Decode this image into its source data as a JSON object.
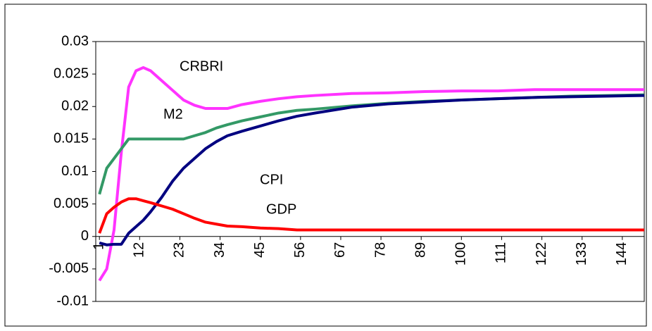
{
  "chart_data": {
    "type": "line",
    "x": [
      1,
      3,
      5,
      7,
      9,
      11,
      13,
      15,
      18,
      21,
      24,
      27,
      30,
      33,
      36,
      40,
      45,
      50,
      55,
      60,
      70,
      80,
      90,
      100,
      110,
      120,
      130,
      140,
      150
    ],
    "series": [
      {
        "name": "CRBRI",
        "color": "#ff33ff",
        "values": [
          -0.0068,
          -0.005,
          0.001,
          0.013,
          0.023,
          0.0255,
          0.026,
          0.0255,
          0.024,
          0.0225,
          0.021,
          0.0202,
          0.0197,
          0.0197,
          0.0197,
          0.0203,
          0.0208,
          0.0212,
          0.0215,
          0.0217,
          0.022,
          0.0221,
          0.0223,
          0.0224,
          0.0224,
          0.0226,
          0.0226,
          0.0226,
          0.0226
        ]
      },
      {
        "name": "M2",
        "color": "#339966",
        "values": [
          0.0065,
          0.0105,
          0.012,
          0.0135,
          0.015,
          0.015,
          0.015,
          0.015,
          0.015,
          0.015,
          0.015,
          0.0155,
          0.016,
          0.0167,
          0.0172,
          0.0178,
          0.0184,
          0.019,
          0.0194,
          0.0196,
          0.0201,
          0.0205,
          0.0208,
          0.021,
          0.0212,
          0.0214,
          0.0216,
          0.0217,
          0.0218
        ]
      },
      {
        "name": "CPI",
        "color": "#000080",
        "values": [
          -0.001,
          -0.0013,
          -0.0012,
          -0.0012,
          0.0005,
          0.0015,
          0.0025,
          0.0038,
          0.006,
          0.0085,
          0.0105,
          0.012,
          0.0135,
          0.0146,
          0.0155,
          0.0162,
          0.017,
          0.0178,
          0.0185,
          0.019,
          0.0199,
          0.0204,
          0.0207,
          0.021,
          0.0212,
          0.0214,
          0.0215,
          0.0216,
          0.0217
        ]
      },
      {
        "name": "GDP",
        "color": "#ff0000",
        "values": [
          0.0005,
          0.0035,
          0.0045,
          0.0053,
          0.0058,
          0.0058,
          0.0055,
          0.0052,
          0.0047,
          0.0042,
          0.0035,
          0.0028,
          0.0022,
          0.0019,
          0.0016,
          0.0015,
          0.0013,
          0.0012,
          0.001,
          0.001,
          0.001,
          0.001,
          0.001,
          0.001,
          0.001,
          0.001,
          0.001,
          0.001,
          0.001
        ]
      }
    ],
    "annotations": [
      "CRBRI",
      "M2",
      "CPI",
      "GDP"
    ],
    "xlim": [
      0,
      150
    ],
    "xticks": [
      1,
      12,
      23,
      34,
      45,
      56,
      67,
      78,
      89,
      100,
      111,
      122,
      133,
      144
    ],
    "ylim": [
      -0.01,
      0.03
    ],
    "yticks": [
      -0.01,
      -0.005,
      0,
      0.005,
      0.01,
      0.015,
      0.02,
      0.025,
      0.03
    ],
    "grid": false
  }
}
